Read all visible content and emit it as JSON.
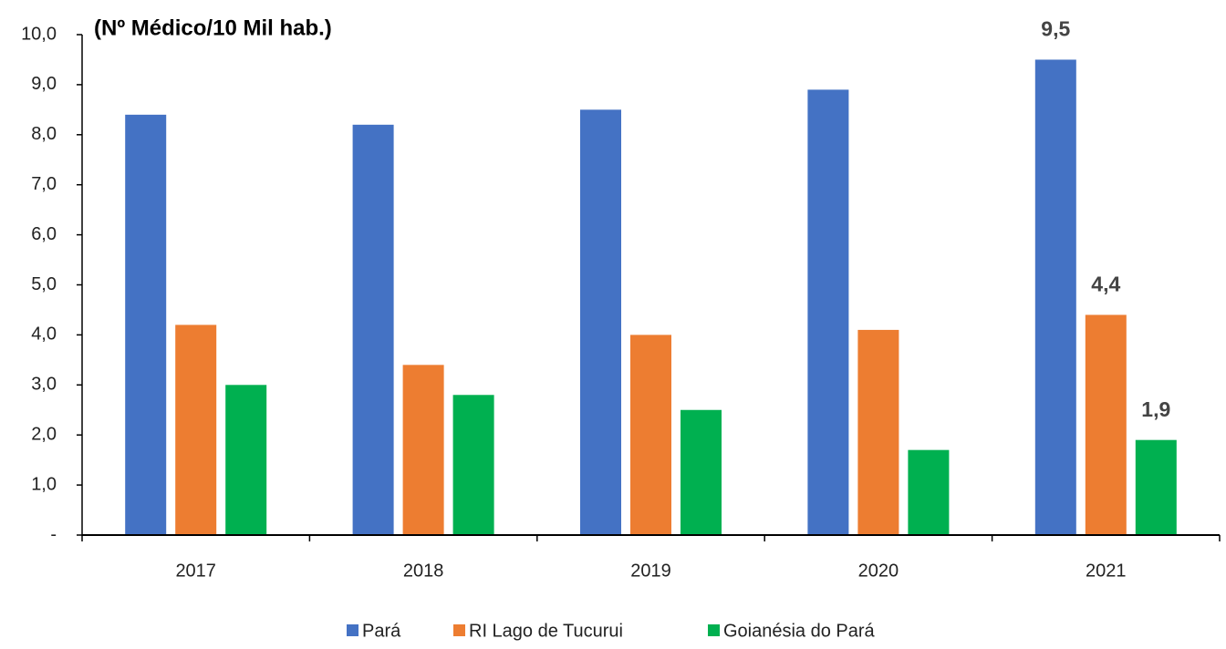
{
  "chart_data": {
    "type": "bar",
    "title": "(Nº Médico/10 Mil hab.)",
    "categories": [
      "2017",
      "2018",
      "2019",
      "2020",
      "2021"
    ],
    "series": [
      {
        "name": "Pará",
        "color": "#4472c4",
        "values": [
          8.4,
          8.2,
          8.5,
          8.9,
          9.5
        ],
        "value_labels": [
          null,
          null,
          null,
          null,
          "9,5"
        ]
      },
      {
        "name": "RI Lago de Tucurui",
        "color": "#ed7d31",
        "values": [
          4.2,
          3.4,
          4.0,
          4.1,
          4.4
        ],
        "value_labels": [
          null,
          null,
          null,
          null,
          "4,4"
        ]
      },
      {
        "name": "Goianésia do Pará",
        "color": "#00b050",
        "values": [
          3.0,
          2.8,
          2.5,
          1.7,
          1.9
        ],
        "value_labels": [
          null,
          null,
          null,
          null,
          "1,9"
        ]
      }
    ],
    "ylim": [
      0,
      10
    ],
    "yticks": [
      {
        "value": 0,
        "label": "-"
      },
      {
        "value": 1,
        "label": "1,0"
      },
      {
        "value": 2,
        "label": "2,0"
      },
      {
        "value": 3,
        "label": "3,0"
      },
      {
        "value": 4,
        "label": "4,0"
      },
      {
        "value": 5,
        "label": "5,0"
      },
      {
        "value": 6,
        "label": "6,0"
      },
      {
        "value": 7,
        "label": "7,0"
      },
      {
        "value": 8,
        "label": "8,0"
      },
      {
        "value": 9,
        "label": "9,0"
      },
      {
        "value": 10,
        "label": "10,0"
      }
    ],
    "grid": false,
    "legend": "bottom"
  }
}
